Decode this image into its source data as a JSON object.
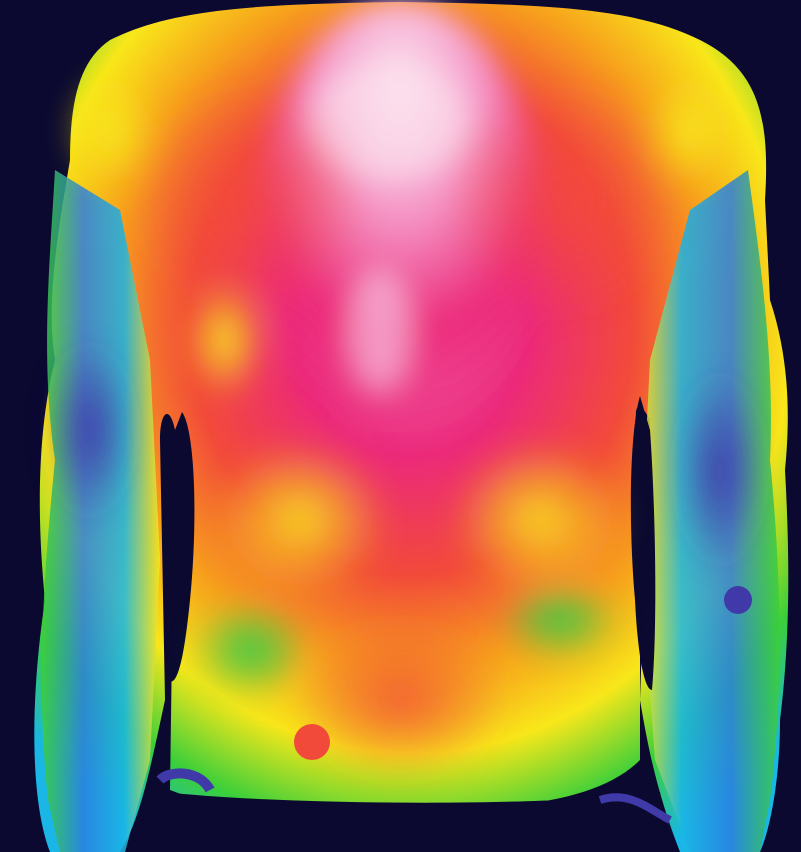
{
  "image": {
    "subject": "thermal-back",
    "palette": {
      "background": "#0b0930",
      "accent_bar": "#1aa6dd",
      "hottest": "#f6a6d0",
      "hot": "#ec2a7a",
      "warm": "#f24a3a",
      "mid": "#f7a21c",
      "cool_mid": "#f8e71a",
      "cool": "#3bcf3a",
      "cold": "#19b6e6",
      "coldest": "#3f3aa8"
    }
  }
}
